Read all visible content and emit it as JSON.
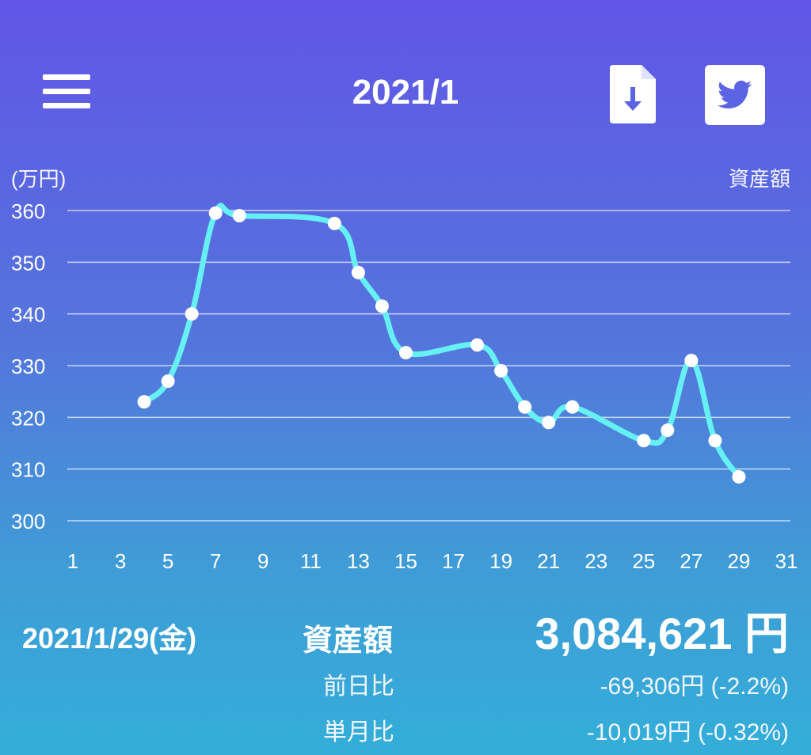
{
  "header": {
    "title": "2021/1",
    "menu_icon": "hamburger-menu-icon",
    "download_icon": "file-download-icon",
    "share_icon": "twitter-icon"
  },
  "colors": {
    "gradient_top": "#6156e6",
    "gradient_bottom": "#33aed9",
    "line": "#66f0f4",
    "point": "#ffffff",
    "grid": "#dfe6ff",
    "text": "#ffffff"
  },
  "chart_data": {
    "type": "line",
    "title": "",
    "ylabel": "(万円)",
    "xlabel": "",
    "series": [
      {
        "name": "資産額",
        "x": [
          4,
          5,
          6,
          7,
          8,
          12,
          13,
          14,
          15,
          18,
          19,
          20,
          21,
          22,
          25,
          26,
          27,
          28,
          29
        ],
        "values": [
          323,
          327,
          340,
          359.5,
          359,
          357.5,
          348,
          341.5,
          332.5,
          334,
          329,
          322,
          319,
          322,
          315.5,
          317.5,
          331,
          315.5,
          308.5
        ]
      }
    ],
    "xlim": [
      1,
      31
    ],
    "ylim": [
      300,
      360
    ],
    "x_ticks": [
      "1",
      "3",
      "5",
      "7",
      "9",
      "11",
      "13",
      "15",
      "17",
      "19",
      "21",
      "23",
      "25",
      "27",
      "29",
      "31"
    ],
    "y_ticks": [
      "300",
      "310",
      "320",
      "330",
      "340",
      "350",
      "360"
    ],
    "grid": true,
    "legend_position": "top-right"
  },
  "summary": {
    "date": "2021/1/29(金)",
    "asset_label": "資産額",
    "asset_value": "3,084,621 円",
    "day_change_label": "前日比",
    "day_change_value": "-69,306円 (-2.2%)",
    "month_change_label": "単月比",
    "month_change_value": "-10,019円 (-0.32%)"
  }
}
